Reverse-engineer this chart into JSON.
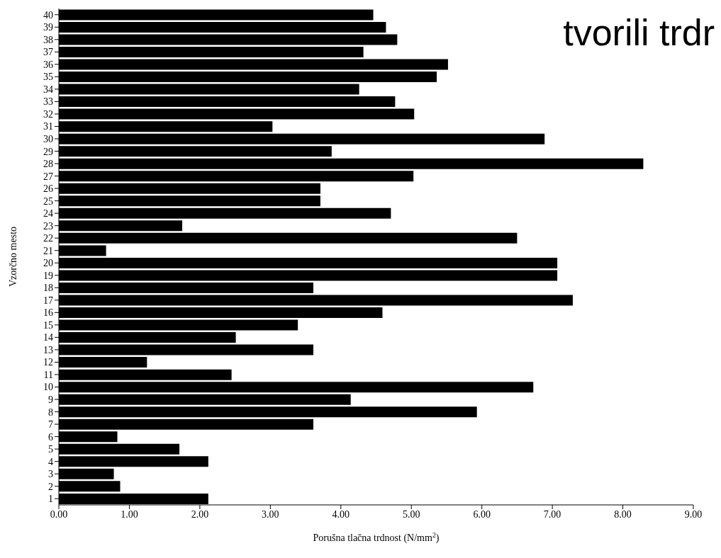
{
  "chart_data": {
    "type": "bar",
    "orientation": "horizontal",
    "xlabel": "Porušna tlačna trdnost (N/mm$^{2}$)",
    "ylabel": "Vzorčno mesto",
    "annotations": [
      "tvorili trdr"
    ],
    "color": "#000000",
    "categories": [
      "40",
      "39",
      "38",
      "37",
      "36",
      "35",
      "34",
      "33",
      "32",
      "31",
      "30",
      "29",
      "28",
      "27",
      "26",
      "25",
      "24",
      "23",
      "22",
      "21",
      "20",
      "19",
      "18",
      "17",
      "16",
      "15",
      "14",
      "13",
      "12",
      "11",
      "10",
      "9",
      "8",
      "7",
      "6",
      "5",
      "4",
      "3",
      "2",
      "1"
    ],
    "values": [
      4.46,
      4.64,
      4.8,
      4.32,
      5.52,
      5.36,
      4.26,
      4.77,
      5.04,
      3.03,
      6.89,
      3.87,
      8.29,
      5.03,
      3.71,
      3.71,
      4.71,
      1.75,
      6.5,
      0.67,
      7.07,
      7.07,
      3.61,
      7.29,
      4.59,
      3.39,
      2.51,
      3.61,
      1.25,
      2.45,
      6.73,
      4.14,
      5.93,
      3.61,
      0.83,
      1.71,
      2.12,
      0.78,
      0.87,
      2.12
    ],
    "xlim": [
      0,
      9
    ],
    "xticks": [
      {
        "value": 0,
        "label": "0.00"
      },
      {
        "value": 1,
        "label": "1.00"
      },
      {
        "value": 2,
        "label": "2.00"
      },
      {
        "value": 3,
        "label": "3.00"
      },
      {
        "value": 4,
        "label": "4.00"
      },
      {
        "value": 5,
        "label": "5.00"
      },
      {
        "value": 6,
        "label": "6.00"
      },
      {
        "value": 7,
        "label": "7.00"
      },
      {
        "value": 8,
        "label": "8.00"
      },
      {
        "value": 9,
        "label": "9.00"
      }
    ]
  }
}
